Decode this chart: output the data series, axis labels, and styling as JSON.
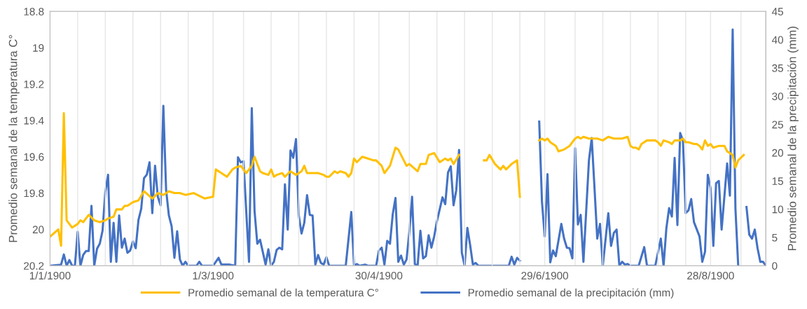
{
  "chart_data": {
    "type": "line",
    "ylabel": "Promedio semanal de la temperatura C°",
    "y2label": "Promedio semanal de la precipitación (mm)",
    "xlim": [
      "1900-01-01",
      "1900-09-17"
    ],
    "xticks": [
      {
        "value": "1900-01-01",
        "label": "1/1/1900"
      },
      {
        "value": "1900-03-01",
        "label": "1/3/1900"
      },
      {
        "value": "1900-04-30",
        "label": "30/4/1900"
      },
      {
        "value": "1900-06-29",
        "label": "29/6/1900"
      },
      {
        "value": "1900-08-28",
        "label": "28/8/1900"
      },
      {
        "value": "1900-01-11",
        "label": null
      },
      {
        "value": "1900-01-21",
        "label": null
      },
      {
        "value": "1900-01-31",
        "label": null
      },
      {
        "value": "1900-02-10",
        "label": null
      },
      {
        "value": "1900-02-20",
        "label": null
      },
      {
        "value": "1900-03-12",
        "label": null
      },
      {
        "value": "1900-03-22",
        "label": null
      },
      {
        "value": "1900-04-01",
        "label": null
      },
      {
        "value": "1900-04-11",
        "label": null
      },
      {
        "value": "1900-04-21",
        "label": null
      },
      {
        "value": "1900-05-11",
        "label": null
      },
      {
        "value": "1900-05-21",
        "label": null
      },
      {
        "value": "1900-05-31",
        "label": null
      },
      {
        "value": "1900-06-10",
        "label": null
      },
      {
        "value": "1900-06-20",
        "label": null
      },
      {
        "value": "1900-07-10",
        "label": null
      },
      {
        "value": "1900-07-20",
        "label": null
      },
      {
        "value": "1900-07-30",
        "label": null
      },
      {
        "value": "1900-08-09",
        "label": null
      },
      {
        "value": "1900-08-19",
        "label": null
      },
      {
        "value": "1900-09-08",
        "label": null
      }
    ],
    "ylim": [
      20.2,
      18.8
    ],
    "yticks": [
      18.8,
      19,
      19.2,
      19.4,
      19.6,
      19.8,
      20,
      20.2
    ],
    "y2lim": [
      0,
      45
    ],
    "y2ticks": [
      0,
      5,
      10,
      15,
      20,
      25,
      30,
      35,
      40,
      45
    ],
    "grid": "x",
    "legend": "bottom",
    "marker": "none",
    "line_style": "solid",
    "series": [
      {
        "name": "Promedio semanal de la temperatura C°",
        "color": "#ffc000",
        "x": [
          "1900-01-01",
          "1900-01-04",
          "1900-01-05",
          "1900-01-06",
          "1900-01-07",
          "1900-01-09",
          "1900-01-11",
          "1900-01-12",
          "1900-01-13",
          "1900-01-15",
          "1900-01-17",
          "1900-01-19",
          "1900-01-21",
          "1900-01-22",
          "1900-01-24",
          "1900-01-25",
          "1900-01-27",
          "1900-01-28",
          "1900-01-29",
          "1900-01-31",
          "1900-02-02",
          "1900-02-04",
          "1900-02-07",
          "1900-02-09",
          "1900-02-11",
          "1900-02-13",
          "1900-02-15",
          "1900-02-17",
          "1900-02-19",
          "1900-02-22",
          "1900-02-26",
          "1900-03-01",
          "1900-03-02",
          "1900-03-04",
          "1900-03-06",
          "1900-03-08",
          "1900-03-09",
          "1900-03-11",
          "1900-03-13",
          "1900-03-15",
          "1900-03-16",
          "1900-03-18",
          "1900-03-19",
          "1900-03-21",
          "1900-03-22",
          "1900-03-23",
          "1900-03-24",
          "1900-03-26",
          "1900-03-27",
          "1900-03-29",
          "1900-03-31",
          "1900-04-02",
          "1900-04-03",
          "1900-04-04",
          "1900-04-06",
          "1900-04-08",
          "1900-04-10",
          "1900-04-11",
          "1900-04-12",
          "1900-04-14",
          "1900-04-15",
          "1900-04-16",
          "1900-04-18",
          "1900-04-19",
          "1900-04-20",
          "1900-04-21",
          "1900-04-22",
          "1900-04-24",
          "1900-04-26",
          "1900-04-28",
          "1900-04-29",
          "1900-05-01",
          "1900-05-02",
          "1900-05-04",
          "1900-05-06",
          "1900-05-07",
          "1900-05-10",
          "1900-05-11",
          "1900-05-14",
          "1900-05-15",
          "1900-05-17",
          "1900-05-18",
          "1900-05-20",
          "1900-05-22",
          "1900-05-24",
          "1900-05-25",
          "1900-05-26",
          "1900-05-27",
          "1900-05-29",
          "1900-06-02",
          "1900-06-07",
          "1900-06-08",
          "1900-06-09",
          "1900-06-11",
          "1900-06-13",
          "1900-06-14",
          "1900-06-15",
          "1900-06-17",
          "1900-06-19",
          "1900-06-20",
          "1900-06-23",
          "1900-06-27",
          "1900-06-28",
          "1900-06-29",
          "1900-06-30",
          "1900-07-01",
          "1900-07-03",
          "1900-07-04",
          "1900-07-06",
          "1900-07-07",
          "1900-07-08",
          "1900-07-10",
          "1900-07-11",
          "1900-07-12",
          "1900-07-13",
          "1900-07-15",
          "1900-07-16",
          "1900-07-18",
          "1900-07-20",
          "1900-07-22",
          "1900-07-24",
          "1900-07-27",
          "1900-07-29",
          "1900-07-30",
          "1900-07-31",
          "1900-08-01",
          "1900-08-02",
          "1900-08-03",
          "1900-08-05",
          "1900-08-08",
          "1900-08-09",
          "1900-08-10",
          "1900-08-11",
          "1900-08-13",
          "1900-08-14",
          "1900-08-15",
          "1900-08-17",
          "1900-08-18",
          "1900-08-19",
          "1900-08-20",
          "1900-08-22",
          "1900-08-23",
          "1900-08-24",
          "1900-08-25",
          "1900-08-26",
          "1900-08-27",
          "1900-08-28",
          "1900-08-29",
          "1900-08-31",
          "1900-09-02",
          "1900-09-03",
          "1900-09-05",
          "1900-09-06",
          "1900-09-07",
          "1900-09-09"
        ],
        "values": [
          20.04,
          20.0,
          20.09,
          19.36,
          19.95,
          19.99,
          19.97,
          19.95,
          19.96,
          19.92,
          19.95,
          19.96,
          19.95,
          19.94,
          19.93,
          19.89,
          19.89,
          19.87,
          19.87,
          19.85,
          19.84,
          19.79,
          19.83,
          19.8,
          19.81,
          19.79,
          19.8,
          19.8,
          19.81,
          19.8,
          19.83,
          19.82,
          19.67,
          19.69,
          19.71,
          19.67,
          19.66,
          19.65,
          19.69,
          19.65,
          19.6,
          19.68,
          19.69,
          19.7,
          19.67,
          19.71,
          19.7,
          19.69,
          19.71,
          19.68,
          19.7,
          19.68,
          19.65,
          19.69,
          19.69,
          19.69,
          19.7,
          19.71,
          19.71,
          19.68,
          19.69,
          19.68,
          19.69,
          19.71,
          19.69,
          19.61,
          19.63,
          19.6,
          19.61,
          19.62,
          19.62,
          19.65,
          19.69,
          19.65,
          19.55,
          19.56,
          19.65,
          19.64,
          19.68,
          19.64,
          19.64,
          19.59,
          19.58,
          19.63,
          19.61,
          19.62,
          19.61,
          19.64,
          19.59,
          null,
          19.62,
          19.62,
          19.59,
          19.64,
          19.67,
          19.65,
          19.67,
          19.64,
          19.62,
          19.82,
          null,
          19.51,
          19.5,
          19.51,
          19.5,
          19.52,
          19.54,
          19.57,
          19.56,
          19.55,
          19.54,
          19.5,
          19.49,
          19.5,
          19.49,
          19.5,
          19.5,
          19.5,
          19.51,
          19.49,
          19.5,
          19.5,
          19.49,
          19.54,
          19.55,
          19.55,
          19.56,
          19.53,
          19.51,
          19.51,
          19.52,
          19.54,
          19.51,
          19.52,
          19.53,
          19.51,
          19.51,
          19.5,
          19.52,
          19.52,
          19.53,
          19.53,
          19.54,
          19.56,
          19.51,
          19.54,
          19.53,
          19.55,
          19.54,
          19.54,
          19.57,
          19.59,
          19.66,
          19.62,
          19.59
        ]
      },
      {
        "name": "Promedio semanal de la precipitación (mm)",
        "color": "#4472c4",
        "axis": "y2",
        "x": [
          "1900-01-01",
          "1900-01-05",
          "1900-01-06",
          "1900-01-07",
          "1900-01-08",
          "1900-01-09",
          "1900-01-10",
          "1900-01-11",
          "1900-01-12",
          "1900-01-13",
          "1900-01-14",
          "1900-01-15",
          "1900-01-16",
          "1900-01-17",
          "1900-01-18",
          "1900-01-19",
          "1900-01-20",
          "1900-01-21",
          "1900-01-22",
          "1900-01-23",
          "1900-01-24",
          "1900-01-25",
          "1900-01-26",
          "1900-01-27",
          "1900-01-28",
          "1900-01-29",
          "1900-01-30",
          "1900-01-31",
          "1900-02-01",
          "1900-02-02",
          "1900-02-03",
          "1900-02-04",
          "1900-02-05",
          "1900-02-06",
          "1900-02-07",
          "1900-02-08",
          "1900-02-09",
          "1900-02-10",
          "1900-02-11",
          "1900-02-12",
          "1900-02-13",
          "1900-02-14",
          "1900-02-15",
          "1900-02-16",
          "1900-02-17",
          "1900-02-18",
          "1900-02-19",
          "1900-02-20",
          "1900-02-23",
          "1900-02-24",
          "1900-02-25",
          "1900-03-01",
          "1900-03-03",
          "1900-03-04",
          "1900-03-07",
          "1900-03-09",
          "1900-03-10",
          "1900-03-11",
          "1900-03-12",
          "1900-03-14",
          "1900-03-15",
          "1900-03-16",
          "1900-03-17",
          "1900-03-18",
          "1900-03-20",
          "1900-03-21",
          "1900-03-22",
          "1900-03-23",
          "1900-03-24",
          "1900-03-25",
          "1900-03-26",
          "1900-03-27",
          "1900-03-28",
          "1900-03-29",
          "1900-03-30",
          "1900-03-31",
          "1900-04-01",
          "1900-04-02",
          "1900-04-03",
          "1900-04-04",
          "1900-04-05",
          "1900-04-06",
          "1900-04-07",
          "1900-04-08",
          "1900-04-09",
          "1900-04-10",
          "1900-04-11",
          "1900-04-12",
          "1900-04-18",
          "1900-04-20",
          "1900-04-21",
          "1900-04-22",
          "1900-04-23",
          "1900-04-25",
          "1900-04-26",
          "1900-04-29",
          "1900-04-30",
          "1900-05-01",
          "1900-05-02",
          "1900-05-03",
          "1900-05-04",
          "1900-05-05",
          "1900-05-06",
          "1900-05-07",
          "1900-05-08",
          "1900-05-09",
          "1900-05-10",
          "1900-05-11",
          "1900-05-12",
          "1900-05-13",
          "1900-05-14",
          "1900-05-15",
          "1900-05-16",
          "1900-05-17",
          "1900-05-18",
          "1900-05-19",
          "1900-05-20",
          "1900-05-21",
          "1900-05-23",
          "1900-05-24",
          "1900-05-25",
          "1900-05-26",
          "1900-05-27",
          "1900-05-28",
          "1900-05-29",
          "1900-05-30",
          "1900-05-31",
          "1900-06-01",
          "1900-06-02",
          "1900-06-03",
          "1900-06-04",
          "1900-06-05",
          "1900-06-16",
          "1900-06-17",
          "1900-06-18",
          "1900-06-19",
          "1900-06-20",
          "1900-06-23",
          "1900-06-27",
          "1900-06-28",
          "1900-06-29",
          "1900-06-30",
          "1900-07-01",
          "1900-07-02",
          "1900-07-03",
          "1900-07-05",
          "1900-07-06",
          "1900-07-07",
          "1900-07-08",
          "1900-07-09",
          "1900-07-10",
          "1900-07-11",
          "1900-07-12",
          "1900-07-13",
          "1900-07-15",
          "1900-07-16",
          "1900-07-17",
          "1900-07-18",
          "1900-07-19",
          "1900-07-20",
          "1900-07-22",
          "1900-07-23",
          "1900-07-24",
          "1900-07-25",
          "1900-07-26",
          "1900-07-27",
          "1900-07-28",
          "1900-07-29",
          "1900-07-30",
          "1900-08-02",
          "1900-08-04",
          "1900-08-05",
          "1900-08-08",
          "1900-08-10",
          "1900-08-11",
          "1900-08-12",
          "1900-08-13",
          "1900-08-14",
          "1900-08-15",
          "1900-08-16",
          "1900-08-17",
          "1900-08-18",
          "1900-08-19",
          "1900-08-20",
          "1900-08-21",
          "1900-08-22",
          "1900-08-24",
          "1900-08-25",
          "1900-08-26",
          "1900-08-27",
          "1900-08-28",
          "1900-08-29",
          "1900-08-30",
          "1900-08-31",
          "1900-09-01",
          "1900-09-03",
          "1900-09-04",
          "1900-09-05",
          "1900-09-06",
          "1900-09-07",
          "1900-09-08",
          "1900-09-10",
          "1900-09-11",
          "1900-09-12",
          "1900-09-13",
          "1900-09-14",
          "1900-09-15",
          "1900-09-16",
          "1900-09-17"
        ],
        "values": [
          0,
          0.2,
          2.0,
          0,
          1.0,
          0,
          0,
          6.0,
          0,
          1.9,
          2.6,
          2.6,
          10.6,
          0,
          3.0,
          3.9,
          6.2,
          13.1,
          16.1,
          0.7,
          7.6,
          0.7,
          8.9,
          3.2,
          4.8,
          2.3,
          2.7,
          4.3,
          3.1,
          8.1,
          10.1,
          15.5,
          16.1,
          18.3,
          9.3,
          17.7,
          12.2,
          10.7,
          28.3,
          13.4,
          8.9,
          7.0,
          1.4,
          6.1,
          1.1,
          0,
          0.7,
          0,
          0,
          0.7,
          0,
          0,
          1.4,
          0.2,
          0.2,
          0,
          19.2,
          18.3,
          18.5,
          0.7,
          27.9,
          9.7,
          3.9,
          4.6,
          0.2,
          2.9,
          0,
          0.7,
          2.8,
          3.2,
          2.9,
          14.4,
          6.4,
          20.4,
          19.1,
          22.4,
          8.9,
          5.7,
          7.6,
          12.5,
          9.0,
          8.9,
          0.2,
          1.9,
          0.5,
          0.2,
          1.5,
          0,
          0,
          9.5,
          0,
          0.3,
          0,
          0.2,
          0,
          0,
          2.7,
          3.2,
          0.2,
          4.4,
          3.9,
          9.1,
          12.0,
          0.7,
          1.8,
          0.2,
          1.1,
          6.0,
          12.2,
          0.3,
          0,
          6.2,
          1.3,
          1.7,
          5.4,
          3.2,
          5.2,
          7.9,
          12.1,
          10.9,
          16.5,
          17.6,
          10.7,
          13.4,
          20.5,
          2.3,
          0,
          6.7,
          3.7,
          0.2,
          0.5,
          0,
          0,
          1.6,
          0.2,
          1.4,
          0.9,
          null,
          25.5,
          11.3,
          5.2,
          16.2,
          0.6,
          2.7,
          1.7,
          7.4,
          4.8,
          3.2,
          3.1,
          1.3,
          20.8,
          7.3,
          9.0,
          0.7,
          18.7,
          22.6,
          13.8,
          4.8,
          7.4,
          0,
          9.3,
          3.5,
          5.8,
          6.4,
          0,
          0.7,
          0.2,
          0.3,
          0,
          0,
          3.3,
          0,
          0,
          4.8,
          0,
          6.6,
          10.2,
          8.7,
          19.1,
          7.2,
          23.5,
          22.2,
          9.3,
          9.8,
          11.8,
          7.7,
          5.2,
          0.7,
          2.5,
          16.1,
          13.8,
          3.5,
          14.6,
          15.0,
          6.4,
          18.1,
          12.4,
          41.8,
          10.1,
          0,
          null,
          10.4,
          5.5,
          4.8,
          6.4,
          3.1,
          0.7,
          0.7,
          0
        ]
      }
    ]
  }
}
